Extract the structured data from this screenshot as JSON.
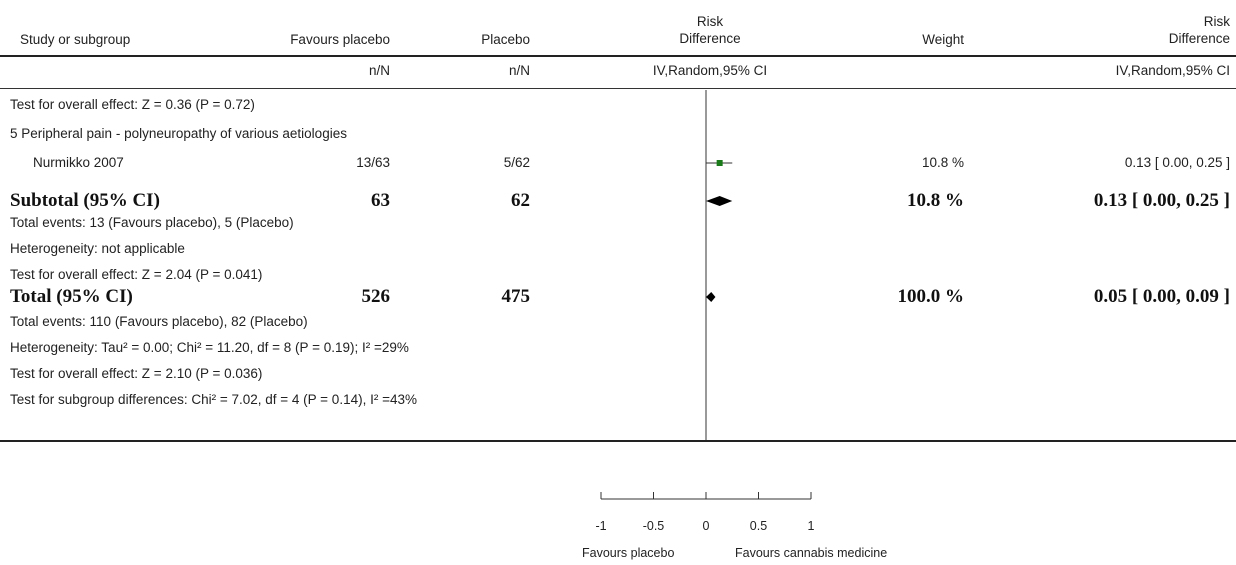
{
  "header": {
    "study": "Study or subgroup",
    "favours_placebo": "Favours placebo",
    "placebo": "Placebo",
    "rd_line1": "Risk",
    "rd_line2": "Difference",
    "weight": "Weight",
    "rd2_line1": "Risk",
    "rd2_line2": "Difference",
    "nN1": "n/N",
    "nN2": "n/N",
    "method1": "IV,Random,95% CI",
    "method2": "IV,Random,95% CI"
  },
  "rows": {
    "test_prev": "Test for overall effect: Z = 0.36 (P = 0.72)",
    "group5": "5 Peripheral pain - polyneuropathy of various aetiologies",
    "study_name": "Nurmikko 2007",
    "study_fp": "13/63",
    "study_pl": "5/62",
    "study_weight": "10.8 %",
    "study_ci": "0.13 [ 0.00, 0.25 ]",
    "subtotal_label": "Subtotal (95% CI)",
    "subtotal_fp": "63",
    "subtotal_pl": "62",
    "subtotal_weight": "10.8 %",
    "subtotal_ci": "0.13 [ 0.00, 0.25 ]",
    "sub_events": "Total events: 13 (Favours placebo), 5 (Placebo)",
    "sub_het": "Heterogeneity: not applicable",
    "sub_test": "Test for overall effect: Z = 2.04 (P = 0.041)",
    "total_label": "Total (95% CI)",
    "total_fp": "526",
    "total_pl": "475",
    "total_weight": "100.0 %",
    "total_ci": "0.05 [ 0.00, 0.09 ]",
    "tot_events": "Total events: 110 (Favours placebo), 82 (Placebo)",
    "tot_het": "Heterogeneity: Tau² = 0.00; Chi² = 11.20, df = 8 (P = 0.19); I² =29%",
    "tot_test": "Test for overall effect: Z = 2.10 (P = 0.036)",
    "subgroup_test": "Test for subgroup differences: Chi² = 7.02, df = 4 (P = 0.14), I² =43%"
  },
  "axis": {
    "left_label": "Favours placebo",
    "right_label": "Favours cannabis medicine"
  },
  "colors": {
    "study_marker": "#1a7a1a",
    "diamond": "#000000",
    "line": "#333333"
  },
  "chart_data": {
    "type": "forest",
    "xlim": [
      -1,
      1
    ],
    "ticks": [
      -1,
      -0.5,
      0,
      0.5,
      1
    ],
    "tick_labels": [
      "-1",
      "-0.5",
      "0",
      "0.5",
      "1"
    ],
    "studies": [
      {
        "name": "Nurmikko 2007",
        "estimate": 0.13,
        "lower": 0.0,
        "upper": 0.25,
        "weight": 10.8
      }
    ],
    "subtotals": [
      {
        "name": "Subtotal (95% CI)",
        "estimate": 0.13,
        "lower": 0.0,
        "upper": 0.25
      }
    ],
    "total": {
      "name": "Total (95% CI)",
      "estimate": 0.05,
      "lower": 0.0,
      "upper": 0.09
    }
  }
}
